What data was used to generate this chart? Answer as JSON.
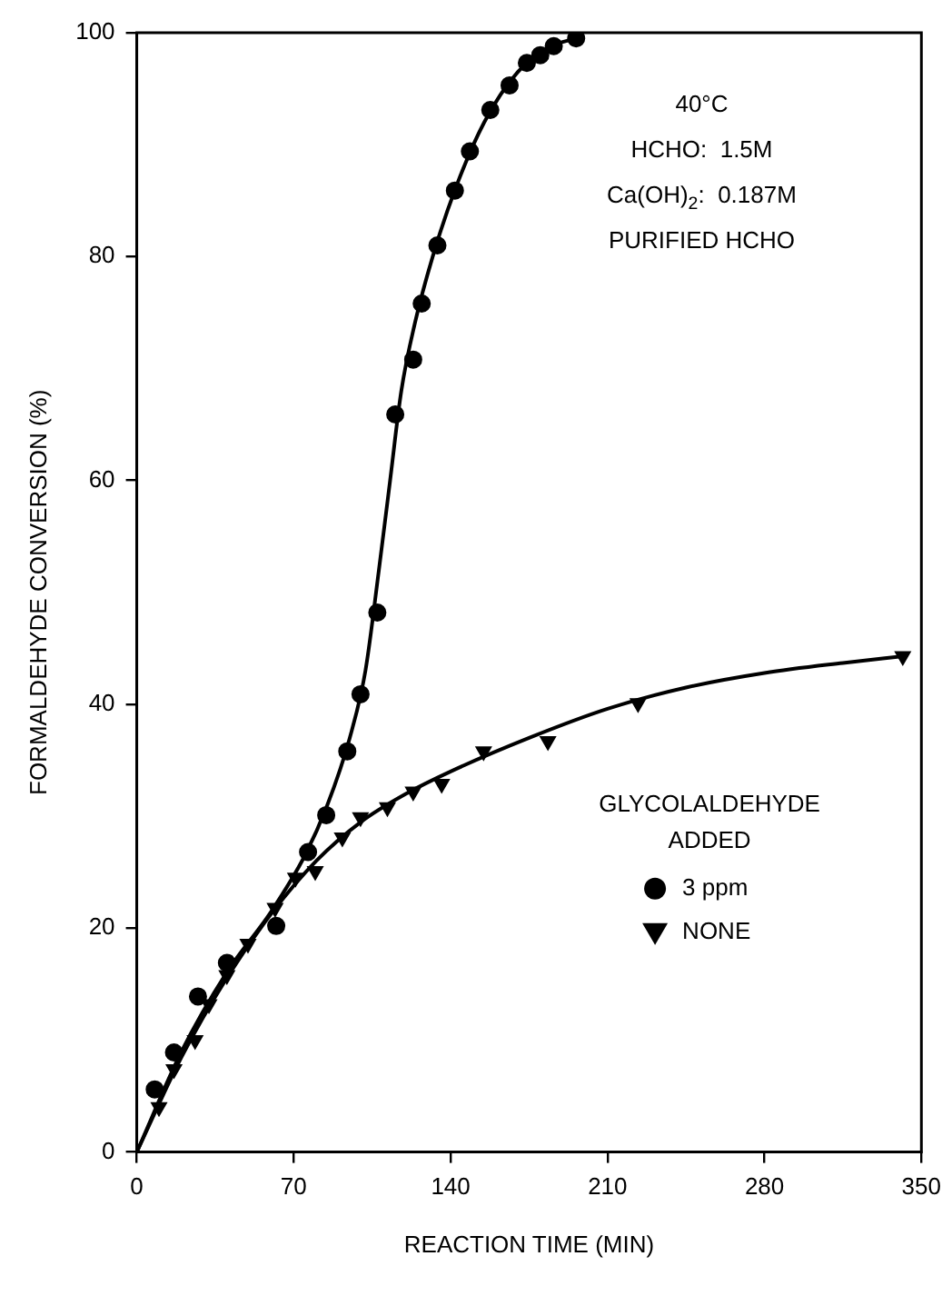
{
  "chart_data": {
    "type": "scatter",
    "xlabel": "REACTION TIME (MIN)",
    "ylabel": "FORMALDEHYDE CONVERSION (%)",
    "xlim": [
      0,
      350
    ],
    "xticks": [
      0,
      70,
      140,
      210,
      280,
      350
    ],
    "ylim": [
      0,
      100
    ],
    "yticks": [
      0,
      20,
      40,
      60,
      80,
      100
    ],
    "grid": false,
    "legend": "bottom right",
    "legend_title": "GLYCOLALDEHYDE ADDED",
    "annotations": [
      "40°C",
      "HCHO:  1.5M",
      "Ca(OH)$_{2}$:  0.187M",
      "PURIFIED HCHO"
    ],
    "series": [
      {
        "name": "3 ppm",
        "type": "scatter",
        "marker": "circle",
        "color": "#000000",
        "x": [
          8,
          16.6,
          27.3,
          40.2,
          62.2,
          76.4,
          84.5,
          93.9,
          99.8,
          107.3,
          115.3,
          123.3,
          127.1,
          134.1,
          141.9,
          148.6,
          157.7,
          166.3,
          174,
          180,
          186,
          196
        ],
        "values": [
          5.6,
          8.9,
          13.9,
          16.9,
          20.2,
          26.8,
          30.1,
          35.8,
          40.9,
          48.2,
          65.9,
          70.8,
          75.8,
          81,
          85.9,
          89.4,
          93.1,
          95.3,
          97.3,
          98,
          98.8,
          99.5
        ]
      },
      {
        "name": "NONE",
        "type": "scatter",
        "marker": "triangle",
        "color": "#000000",
        "x": [
          9.9,
          16.6,
          26,
          32.2,
          40.2,
          49.6,
          61.7,
          70.8,
          79.6,
          91.7,
          99.8,
          111.8,
          123.3,
          136,
          154.7,
          183.4,
          223.6,
          341.7
        ],
        "values": [
          4,
          7.4,
          10,
          13.2,
          15.8,
          18.6,
          21.8,
          24.5,
          25.1,
          28.1,
          29.9,
          30.8,
          32.2,
          32.9,
          35.8,
          36.7,
          40.1,
          44.3
        ]
      },
      {
        "type": "line",
        "marker": "none",
        "color": "#000000",
        "x": [
          0,
          20,
          40,
          60,
          75,
          85,
          95,
          102,
          108,
          113,
          118,
          124,
          132,
          142,
          155,
          170,
          185,
          196
        ],
        "values": [
          0,
          9,
          16,
          21.5,
          26.5,
          31,
          37,
          43,
          52,
          60,
          68,
          74,
          80,
          86,
          92,
          96.5,
          98.8,
          99.5
        ]
      },
      {
        "type": "line",
        "marker": "none",
        "color": "#000000",
        "x": [
          0,
          20,
          40,
          60,
          80,
          100,
          120,
          140,
          175,
          210,
          245,
          280,
          315,
          342
        ],
        "values": [
          0,
          8.5,
          15.5,
          21.3,
          26,
          29.5,
          32,
          34,
          37,
          39.6,
          41.5,
          42.8,
          43.7,
          44.3
        ]
      }
    ]
  }
}
